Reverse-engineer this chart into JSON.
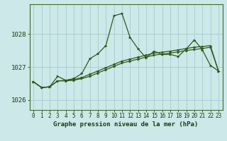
{
  "title": "Graphe pression niveau de la mer (hPa)",
  "background_color": "#cce8e8",
  "grid_color": "#aad0d0",
  "line_color": "#2d5a1b",
  "marker_color": "#2d5a1b",
  "ylim": [
    1025.7,
    1028.9
  ],
  "yticks": [
    1026,
    1027,
    1028
  ],
  "xlim": [
    -0.5,
    23.5
  ],
  "figsize": [
    3.2,
    2.0
  ],
  "dpi": 100,
  "series": [
    {
      "x": [
        0,
        1,
        2,
        3,
        4,
        5,
        6,
        7,
        8,
        9,
        10,
        11,
        12,
        13,
        14,
        15,
        16,
        17,
        18,
        19,
        20,
        21,
        22,
        23
      ],
      "y": [
        1026.55,
        1026.38,
        1026.4,
        1026.72,
        1026.6,
        1026.65,
        1026.8,
        1027.25,
        1027.4,
        1027.65,
        1028.55,
        1028.62,
        1027.9,
        1027.55,
        1027.28,
        1027.48,
        1027.38,
        1027.38,
        1027.32,
        1027.55,
        1027.82,
        1027.52,
        1027.05,
        1026.88
      ]
    },
    {
      "x": [
        0,
        1,
        2,
        3,
        4,
        5,
        6,
        7,
        8,
        9,
        10,
        11,
        12,
        13,
        14,
        15,
        16,
        17,
        18,
        19,
        20,
        21,
        22,
        23
      ],
      "y": [
        1026.55,
        1026.38,
        1026.4,
        1026.58,
        1026.6,
        1026.62,
        1026.68,
        1026.78,
        1026.88,
        1026.98,
        1027.08,
        1027.18,
        1027.24,
        1027.3,
        1027.36,
        1027.42,
        1027.45,
        1027.48,
        1027.52,
        1027.56,
        1027.6,
        1027.62,
        1027.65,
        1026.88
      ]
    },
    {
      "x": [
        0,
        1,
        2,
        3,
        4,
        5,
        6,
        7,
        8,
        9,
        10,
        11,
        12,
        13,
        14,
        15,
        16,
        17,
        18,
        19,
        20,
        21,
        22,
        23
      ],
      "y": [
        1026.55,
        1026.38,
        1026.4,
        1026.58,
        1026.58,
        1026.6,
        1026.65,
        1026.72,
        1026.82,
        1026.92,
        1027.02,
        1027.12,
        1027.18,
        1027.24,
        1027.3,
        1027.36,
        1027.39,
        1027.42,
        1027.46,
        1027.5,
        1027.53,
        1027.56,
        1027.6,
        1026.88
      ]
    }
  ]
}
